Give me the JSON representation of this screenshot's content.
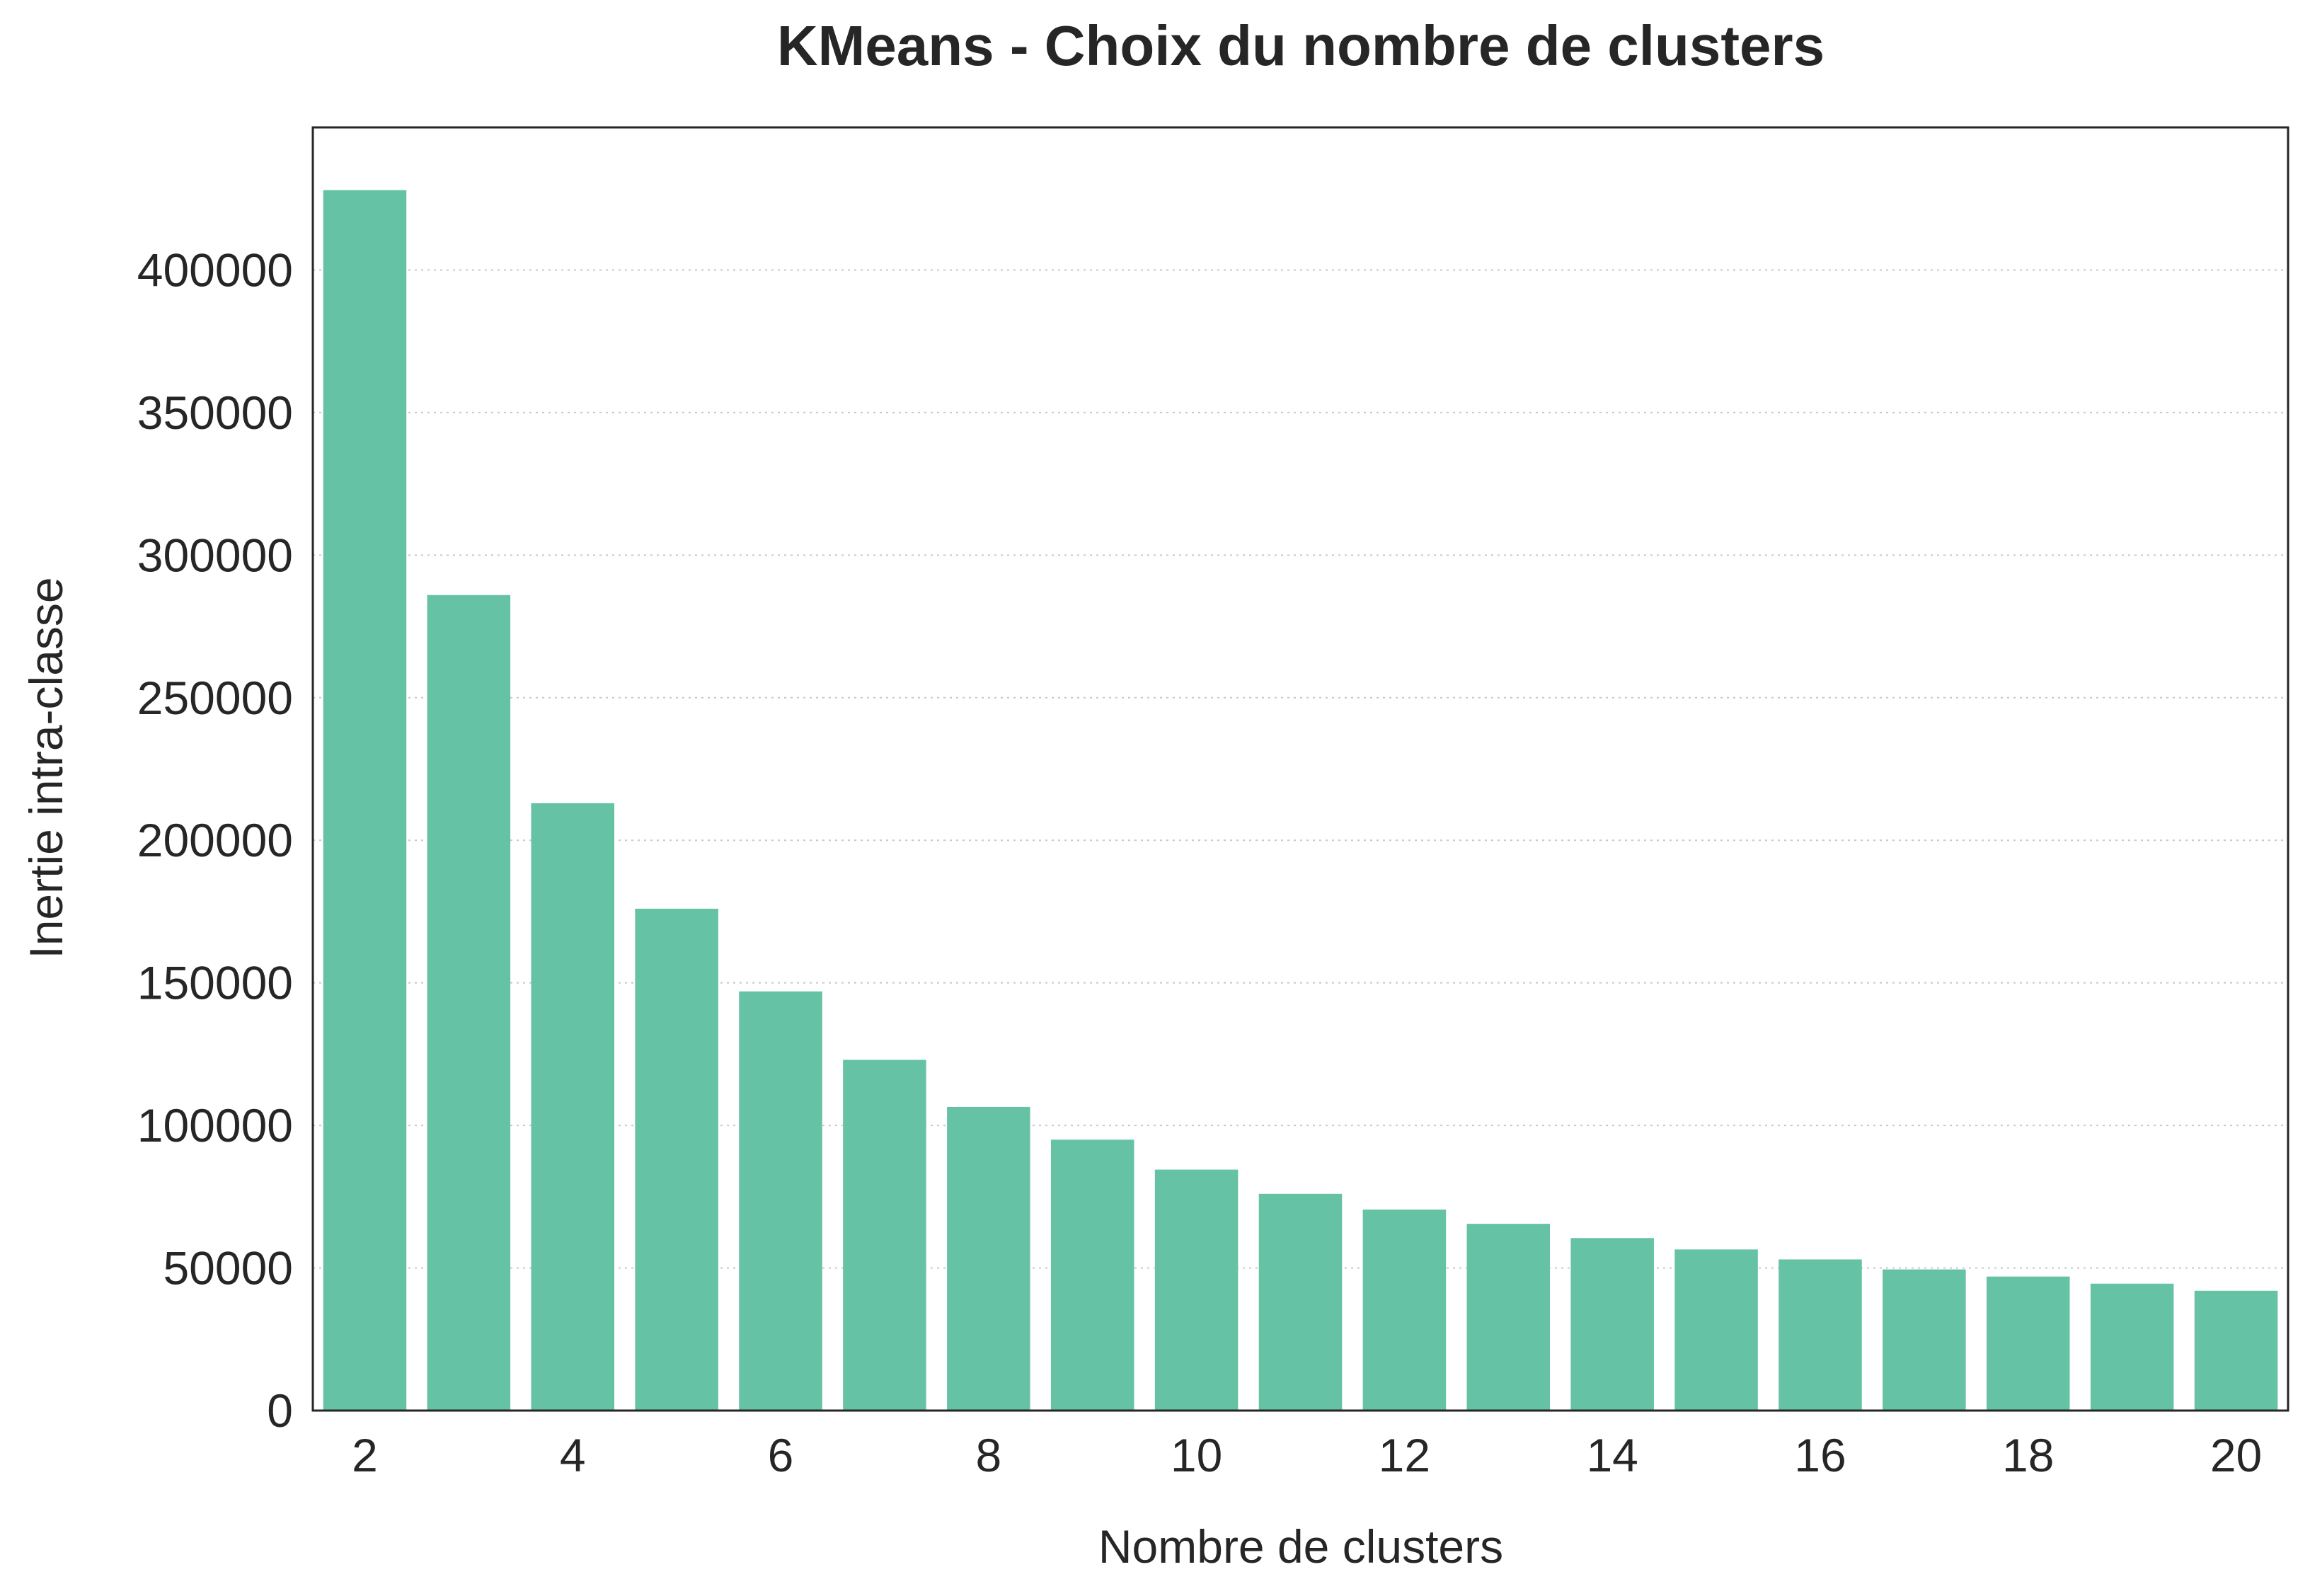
{
  "chart_data": {
    "type": "bar",
    "title": "KMeans - Choix du nombre de clusters",
    "xlabel": "Nombre de clusters",
    "ylabel": "Inertie intra-classe",
    "categories": [
      2,
      3,
      4,
      5,
      6,
      7,
      8,
      9,
      10,
      11,
      12,
      13,
      14,
      15,
      16,
      17,
      18,
      19,
      20
    ],
    "x_tick_labels": [
      "2",
      "4",
      "6",
      "8",
      "10",
      "12",
      "14",
      "16",
      "18",
      "20"
    ],
    "values": [
      428000,
      286000,
      213000,
      176000,
      147000,
      123000,
      106500,
      95000,
      84500,
      76000,
      70500,
      65500,
      60500,
      56500,
      53000,
      49500,
      47000,
      44500,
      42000
    ],
    "ylim": [
      0,
      450000
    ],
    "y_ticks": [
      0,
      50000,
      100000,
      150000,
      200000,
      250000,
      300000,
      350000,
      400000
    ],
    "grid": "horizontal-dotted",
    "bar_color": "#66c2a5"
  }
}
